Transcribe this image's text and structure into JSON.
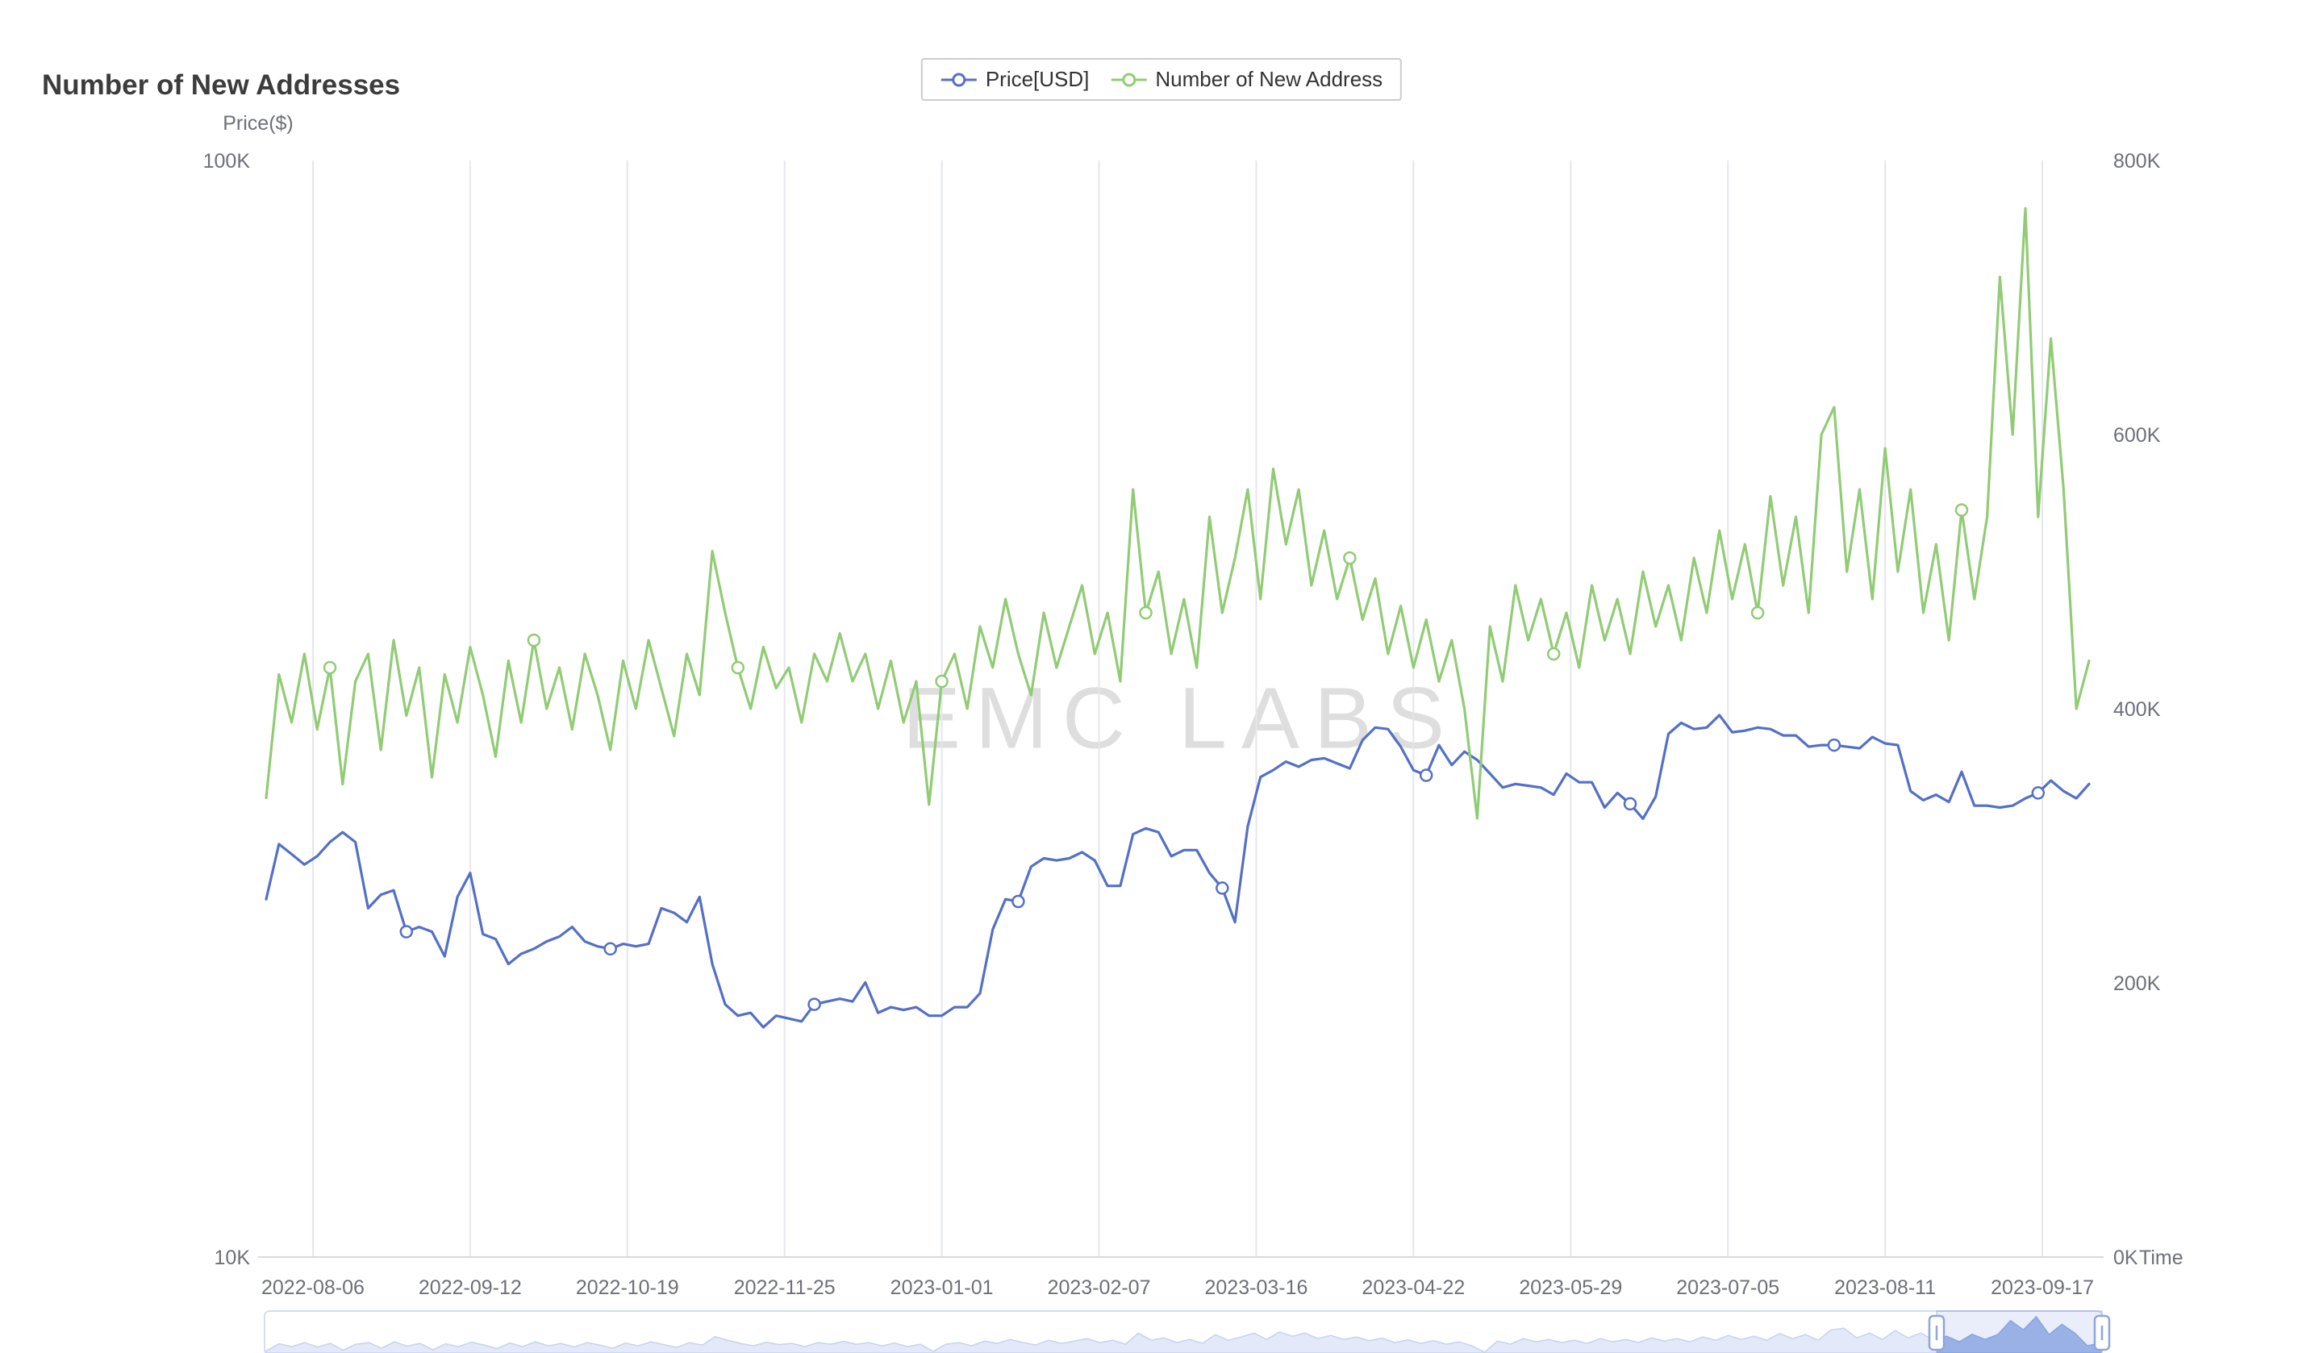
{
  "title": "Number of New Addresses",
  "watermark": "EMC LABS",
  "legend": [
    {
      "label": "Price[USD]",
      "color": "#5470c6",
      "icon": "line-circle-icon"
    },
    {
      "label": "Number of New Address",
      "color": "#91cc75",
      "icon": "line-circle-icon"
    }
  ],
  "axes": {
    "left": {
      "name": "Price($)",
      "ticks": [
        "100K",
        "10K"
      ],
      "scale": "log"
    },
    "right": {
      "ticks": [
        "800K",
        "600K",
        "400K",
        "200K",
        "0K"
      ],
      "scale": "linear"
    },
    "x": {
      "name": "Time",
      "ticks": [
        "2022-08-06",
        "2022-09-12",
        "2022-10-19",
        "2022-11-25",
        "2023-01-01",
        "2023-02-07",
        "2023-03-16",
        "2023-04-22",
        "2023-05-29",
        "2023-07-05",
        "2023-08-11",
        "2023-09-17"
      ]
    }
  },
  "datazoom": {
    "window_start_pct": 91,
    "window_end_pct": 100
  },
  "chart_data": {
    "type": "line",
    "title": "Number of New Addresses",
    "grid": "vertical-only",
    "legend_position": "top-center",
    "left_axis": {
      "label": "Price($)",
      "scale": "log",
      "range": [
        10000,
        100000
      ],
      "tick_labels": [
        "100K",
        "10K"
      ]
    },
    "right_axis": {
      "label": "Number of New Address",
      "scale": "linear",
      "unit": "K",
      "range_K": [
        0,
        800
      ],
      "tick_labels": [
        "800K",
        "600K",
        "400K",
        "200K",
        "0K"
      ]
    },
    "x_axis": {
      "label": "Time",
      "tick_labels": [
        "2022-08-06",
        "2022-09-12",
        "2022-10-19",
        "2022-11-25",
        "2023-01-01",
        "2023-02-07",
        "2023-03-16",
        "2023-04-22",
        "2023-05-29",
        "2023-07-05",
        "2023-08-11",
        "2023-09-17"
      ]
    },
    "x": [
      "2022-07-26",
      "2022-07-29",
      "2022-08-01",
      "2022-08-04",
      "2022-08-07",
      "2022-08-10",
      "2022-08-13",
      "2022-08-16",
      "2022-08-19",
      "2022-08-22",
      "2022-08-25",
      "2022-08-28",
      "2022-08-31",
      "2022-09-03",
      "2022-09-06",
      "2022-09-09",
      "2022-09-12",
      "2022-09-15",
      "2022-09-18",
      "2022-09-21",
      "2022-09-24",
      "2022-09-27",
      "2022-09-30",
      "2022-10-03",
      "2022-10-06",
      "2022-10-09",
      "2022-10-12",
      "2022-10-15",
      "2022-10-18",
      "2022-10-21",
      "2022-10-24",
      "2022-10-27",
      "2022-10-30",
      "2022-11-02",
      "2022-11-05",
      "2022-11-08",
      "2022-11-11",
      "2022-11-14",
      "2022-11-17",
      "2022-11-20",
      "2022-11-23",
      "2022-11-26",
      "2022-11-29",
      "2022-12-02",
      "2022-12-05",
      "2022-12-08",
      "2022-12-11",
      "2022-12-14",
      "2022-12-17",
      "2022-12-20",
      "2022-12-23",
      "2022-12-26",
      "2022-12-29",
      "2023-01-01",
      "2023-01-04",
      "2023-01-07",
      "2023-01-10",
      "2023-01-13",
      "2023-01-16",
      "2023-01-19",
      "2023-01-22",
      "2023-01-25",
      "2023-01-28",
      "2023-01-31",
      "2023-02-03",
      "2023-02-06",
      "2023-02-09",
      "2023-02-12",
      "2023-02-15",
      "2023-02-18",
      "2023-02-21",
      "2023-02-24",
      "2023-02-27",
      "2023-03-02",
      "2023-03-05",
      "2023-03-08",
      "2023-03-11",
      "2023-03-14",
      "2023-03-17",
      "2023-03-20",
      "2023-03-23",
      "2023-03-26",
      "2023-03-29",
      "2023-04-01",
      "2023-04-04",
      "2023-04-07",
      "2023-04-10",
      "2023-04-13",
      "2023-04-16",
      "2023-04-19",
      "2023-04-22",
      "2023-04-25",
      "2023-04-28",
      "2023-05-01",
      "2023-05-04",
      "2023-05-07",
      "2023-05-10",
      "2023-05-13",
      "2023-05-16",
      "2023-05-19",
      "2023-05-22",
      "2023-05-25",
      "2023-05-28",
      "2023-05-31",
      "2023-06-03",
      "2023-06-06",
      "2023-06-09",
      "2023-06-12",
      "2023-06-15",
      "2023-06-18",
      "2023-06-21",
      "2023-06-24",
      "2023-06-27",
      "2023-06-30",
      "2023-07-03",
      "2023-07-06",
      "2023-07-09",
      "2023-07-12",
      "2023-07-15",
      "2023-07-18",
      "2023-07-21",
      "2023-07-24",
      "2023-07-27",
      "2023-07-30",
      "2023-08-02",
      "2023-08-05",
      "2023-08-08",
      "2023-08-11",
      "2023-08-14",
      "2023-08-17",
      "2023-08-20",
      "2023-08-23",
      "2023-08-26",
      "2023-08-29",
      "2023-09-01",
      "2023-09-04",
      "2023-09-07",
      "2023-09-10",
      "2023-09-13",
      "2023-09-16",
      "2023-09-19",
      "2023-09-22",
      "2023-09-25",
      "2023-09-28"
    ],
    "series": [
      {
        "name": "Price[USD]",
        "color": "#5470c6",
        "axis": "left",
        "unit": "USD",
        "values": [
          21200,
          23800,
          23300,
          22800,
          23200,
          23900,
          24400,
          23900,
          20800,
          21400,
          21600,
          19800,
          20000,
          19800,
          18800,
          21300,
          22400,
          19700,
          19500,
          18500,
          18900,
          19100,
          19400,
          19600,
          20000,
          19400,
          19200,
          19100,
          19300,
          19200,
          19300,
          20800,
          20600,
          20200,
          21300,
          18500,
          17000,
          16600,
          16700,
          16200,
          16600,
          16500,
          16400,
          17000,
          17100,
          17200,
          17100,
          17800,
          16700,
          16900,
          16800,
          16900,
          16600,
          16600,
          16900,
          16900,
          17400,
          19900,
          21200,
          21100,
          22700,
          23100,
          23000,
          23100,
          23400,
          23000,
          21800,
          21800,
          24300,
          24600,
          24400,
          23200,
          23500,
          23500,
          22400,
          21700,
          20200,
          24700,
          27400,
          27800,
          28300,
          28000,
          28400,
          28500,
          28200,
          27900,
          29600,
          30400,
          30300,
          29200,
          27800,
          27500,
          29300,
          28100,
          28900,
          28400,
          27600,
          26800,
          27000,
          26900,
          26800,
          26400,
          27600,
          27100,
          27100,
          25700,
          26500,
          25900,
          25100,
          26300,
          30000,
          30700,
          30300,
          30400,
          31200,
          30100,
          30200,
          30400,
          30300,
          29900,
          29900,
          29200,
          29300,
          29300,
          29200,
          29100,
          29800,
          29400,
          29300,
          26600,
          26100,
          26400,
          26000,
          27700,
          25800,
          25800,
          25700,
          25800,
          26200,
          26500,
          27200,
          26600,
          26200,
          27000
        ]
      },
      {
        "name": "Number of New Address",
        "color": "#91cc75",
        "axis": "right",
        "unit": "K",
        "values": [
          335,
          425,
          390,
          440,
          385,
          430,
          345,
          420,
          440,
          370,
          450,
          395,
          430,
          350,
          425,
          390,
          445,
          410,
          365,
          435,
          390,
          450,
          400,
          430,
          385,
          440,
          410,
          370,
          435,
          400,
          450,
          415,
          380,
          440,
          410,
          515,
          470,
          430,
          400,
          445,
          415,
          430,
          390,
          440,
          420,
          455,
          420,
          440,
          400,
          435,
          390,
          420,
          330,
          420,
          440,
          400,
          460,
          430,
          480,
          440,
          410,
          470,
          430,
          460,
          490,
          440,
          470,
          420,
          560,
          470,
          500,
          440,
          480,
          430,
          540,
          470,
          510,
          560,
          480,
          575,
          520,
          560,
          490,
          530,
          480,
          510,
          465,
          495,
          440,
          475,
          430,
          465,
          420,
          450,
          400,
          320,
          460,
          420,
          490,
          450,
          480,
          440,
          470,
          430,
          490,
          450,
          480,
          440,
          500,
          460,
          490,
          450,
          510,
          470,
          530,
          480,
          520,
          470,
          555,
          490,
          540,
          470,
          600,
          620,
          500,
          560,
          480,
          590,
          500,
          560,
          470,
          520,
          450,
          545,
          480,
          540,
          715,
          600,
          765,
          540,
          670,
          560,
          400,
          435
        ]
      }
    ]
  }
}
